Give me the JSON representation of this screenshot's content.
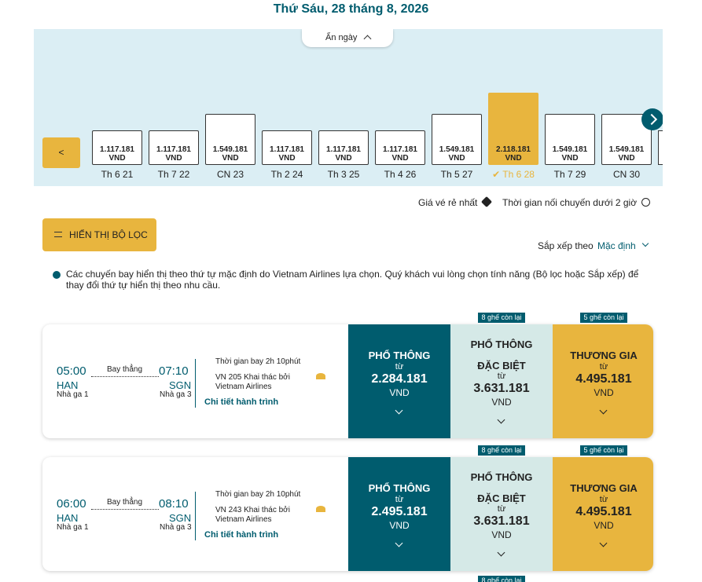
{
  "header": {
    "date": "Thứ Sáu, 28 tháng 8, 2026"
  },
  "date_strip": {
    "toggle": "Ẩn ngày",
    "prev": "<",
    "selected": 7,
    "days": [
      {
        "price": "1.117.181",
        "currency": "VND",
        "label": "Th 6 21"
      },
      {
        "price": "1.117.181",
        "currency": "VND",
        "label": "Th 7 22"
      },
      {
        "price": "1.549.181",
        "currency": "VND",
        "label": "CN 23"
      },
      {
        "price": "1.117.181",
        "currency": "VND",
        "label": "Th 2 24"
      },
      {
        "price": "1.117.181",
        "currency": "VND",
        "label": "Th 3 25"
      },
      {
        "price": "1.117.181",
        "currency": "VND",
        "label": "Th 4 26"
      },
      {
        "price": "1.549.181",
        "currency": "VND",
        "label": "Th 5 27"
      },
      {
        "price": "2.118.181",
        "currency": "VND",
        "label": "Th 6 28"
      },
      {
        "price": "1.549.181",
        "currency": "VND",
        "label": "Th 7 29"
      },
      {
        "price": "1.549.181",
        "currency": "VND",
        "label": "CN 30"
      }
    ]
  },
  "legend": {
    "cheapest": "Giá vé rẻ nhất",
    "short_connection": "Thời gian nối chuyến dưới 2 giờ"
  },
  "filter_button": "HIỂN THỊ BỘ LỌC",
  "sort": {
    "label": "Sắp xếp theo",
    "value": "Mặc định"
  },
  "notice": "Các chuyến bay hiển thị theo thứ tự mặc định do Vietnam Airlines lựa chọn. Quý khách vui lòng chọn tính năng (Bộ lọc hoặc Sắp xếp) để thay đổi thứ tự hiển thị theo nhu cầu.",
  "flights": [
    {
      "dep_time": "05:00",
      "dep_code": "HAN",
      "dep_terminal": "Nhà ga 1",
      "stop": "Bay thẳng",
      "arr_time": "07:10",
      "arr_code": "SGN",
      "arr_terminal": "Nhà ga 3",
      "duration": "Thời gian bay 2h 10phút",
      "flight": "VN 205 Khai thác bởi Vietnam Airlines",
      "details": "Chi tiết hành trình",
      "fares": [
        {
          "name": "PHỔ THÔNG",
          "from": "từ",
          "price": "2.284.181",
          "currency": "VND"
        },
        {
          "name": "PHỔ THÔNG ĐẶC BIỆT",
          "from": "từ",
          "price": "3.631.181",
          "currency": "VND",
          "seats": "8 ghế còn lại"
        },
        {
          "name": "THƯƠNG GIA",
          "from": "từ",
          "price": "4.495.181",
          "currency": "VND",
          "seats": "5 ghế còn lại"
        }
      ]
    },
    {
      "dep_time": "06:00",
      "dep_code": "HAN",
      "dep_terminal": "Nhà ga 1",
      "stop": "Bay thẳng",
      "arr_time": "08:10",
      "arr_code": "SGN",
      "arr_terminal": "Nhà ga 3",
      "duration": "Thời gian bay 2h 10phút",
      "flight": "VN 243 Khai thác bởi Vietnam Airlines",
      "details": "Chi tiết hành trình",
      "fares": [
        {
          "name": "PHỔ THÔNG",
          "from": "từ",
          "price": "2.495.181",
          "currency": "VND"
        },
        {
          "name": "PHỔ THÔNG ĐẶC BIỆT",
          "from": "từ",
          "price": "3.631.181",
          "currency": "VND",
          "seats": "8 ghế còn lại"
        },
        {
          "name": "THƯƠNG GIA",
          "from": "từ",
          "price": "4.495.181",
          "currency": "VND",
          "seats": "5 ghế còn lại"
        }
      ]
    }
  ],
  "next_badge": "8 ghế còn lại"
}
